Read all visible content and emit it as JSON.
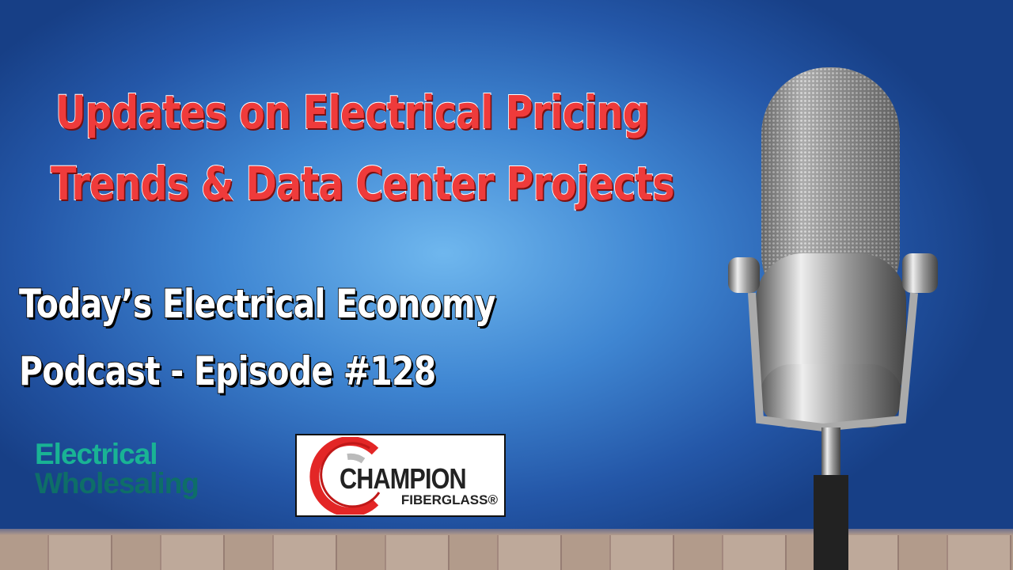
{
  "headline": {
    "line1": "Updates on Electrical Pricing",
    "line2": "Trends & Data Center Projects"
  },
  "subtitle": {
    "line1": "Today’s Electrical Economy",
    "line2": "Podcast - Episode #128"
  },
  "logos": {
    "electrical_wholesaling": {
      "line1": "Electrical",
      "line2": "Wholesaling"
    },
    "champion": {
      "name": "CHAMPION",
      "sub": "FIBERGLASS®"
    }
  },
  "colors": {
    "headline": "#ef3b3b",
    "background": "#3f86d2",
    "ew_green": "#19b394"
  }
}
